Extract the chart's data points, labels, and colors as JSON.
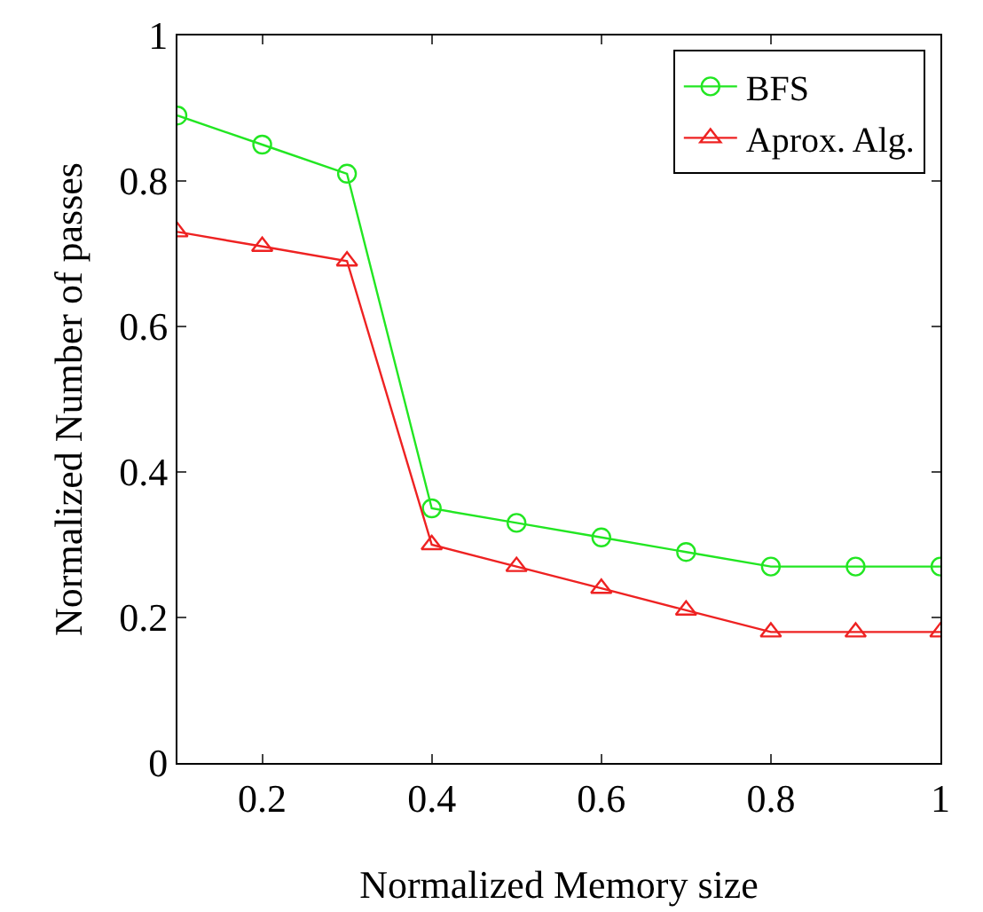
{
  "chart_data": {
    "type": "line",
    "xlabel": "Normalized Memory size",
    "ylabel": "Normalized Number of passes",
    "x": [
      0.1,
      0.2,
      0.3,
      0.4,
      0.5,
      0.6,
      0.7,
      0.8,
      0.9,
      1.0
    ],
    "series": [
      {
        "name": "BFS",
        "color": "#22e622",
        "marker": "circle",
        "values": [
          0.89,
          0.85,
          0.81,
          0.35,
          0.33,
          0.31,
          0.29,
          0.27,
          0.27,
          0.27
        ]
      },
      {
        "name": "Aprox. Alg.",
        "color": "#ee2222",
        "marker": "triangle",
        "values": [
          0.73,
          0.71,
          0.69,
          0.3,
          0.27,
          0.24,
          0.21,
          0.18,
          0.18,
          0.18
        ]
      }
    ],
    "xlim": [
      0.1,
      1
    ],
    "xticks": [
      0.2,
      0.4,
      0.6,
      0.8,
      1
    ],
    "ylim": [
      0,
      1
    ],
    "yticks": [
      0,
      0.2,
      0.4,
      0.6,
      0.8,
      1
    ],
    "grid": false,
    "legend": "top right",
    "line_style": "solid"
  }
}
